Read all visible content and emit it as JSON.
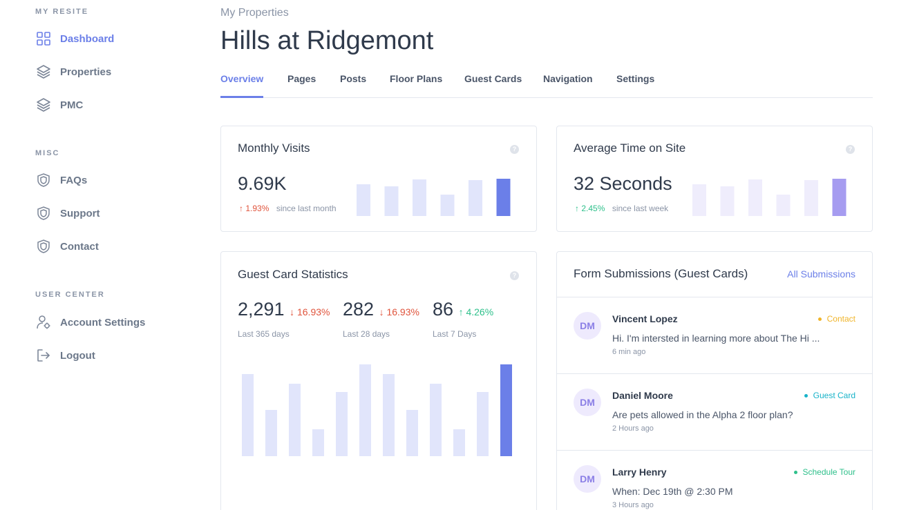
{
  "sidebar": {
    "sections": [
      {
        "title": "MY RESITE",
        "items": [
          {
            "label": "Dashboard",
            "icon": "dashboard-grid-icon",
            "active": true
          },
          {
            "label": "Properties",
            "icon": "layers-icon"
          },
          {
            "label": "PMC",
            "icon": "layers-icon"
          }
        ]
      },
      {
        "title": "MISC",
        "items": [
          {
            "label": "FAQs",
            "icon": "shield-icon"
          },
          {
            "label": "Support",
            "icon": "shield-icon"
          },
          {
            "label": "Contact",
            "icon": "shield-icon"
          }
        ]
      },
      {
        "title": "USER CENTER",
        "items": [
          {
            "label": "Account Settings",
            "icon": "user-gear-icon"
          },
          {
            "label": "Logout",
            "icon": "logout-icon"
          }
        ]
      }
    ]
  },
  "header": {
    "breadcrumb": "My Properties",
    "title": "Hills at Ridgemont"
  },
  "tabs": [
    "Overview",
    "Pages",
    "Posts",
    "Floor Plans",
    "Guest Cards",
    "Navigation",
    "Settings"
  ],
  "active_tab": "Overview",
  "colors": {
    "accent": "#6b7fe8",
    "bar_light": "#e1e5fb",
    "bar_dark": "#6b7fe8",
    "bar_light_purple": "#efedfc",
    "bar_dark_purple": "#a69cf0",
    "down": "#e0533b",
    "up": "#2ec08b"
  },
  "monthly_visits": {
    "title": "Monthly Visits",
    "value": "9.69K",
    "delta": "↑ 1.93%",
    "since": "since last month"
  },
  "avg_time": {
    "title": "Average Time on Site",
    "value": "32 Seconds",
    "delta": "↑ 2.45%",
    "since": "since last week"
  },
  "guest_stats": {
    "title": "Guest Card Statistics",
    "stats": [
      {
        "value": "2,291",
        "delta": "↓ 16.93%",
        "caption": "Last 365 days"
      },
      {
        "value": "282",
        "delta": "↓ 16.93%",
        "caption": "Last 28 days"
      },
      {
        "value": "86",
        "delta": "↑ 4.26%",
        "caption": "Last 7 Days"
      }
    ]
  },
  "submissions": {
    "title": "Form Submissions (Guest Cards)",
    "link": "All Submissions",
    "items": [
      {
        "initials": "DM",
        "name": "Vincent Lopez",
        "tag": "Contact",
        "tag_color": "#f0b429",
        "message": "Hi. I'm intersted in learning more about The Hi ...",
        "time": "6 min ago"
      },
      {
        "initials": "DM",
        "name": "Daniel Moore",
        "tag": "Guest Card",
        "tag_color": "#17b3c9",
        "message": "Are pets allowed in the Alpha 2 floor plan?",
        "time": "2 Hours ago"
      },
      {
        "initials": "DM",
        "name": "Larry Henry",
        "tag": "Schedule Tour",
        "tag_color": "#2ec08b",
        "message": "When: Dec 19th @ 2:30 PM",
        "time": "3 Hours ago"
      }
    ]
  },
  "chart_data": [
    {
      "type": "bar",
      "values": [
        46,
        43,
        53,
        31,
        52,
        54
      ],
      "highlight_index": 5
    },
    {
      "type": "bar",
      "values": [
        46,
        43,
        53,
        31,
        52,
        54
      ],
      "highlight_index": 5
    },
    {
      "type": "bar",
      "values": [
        100,
        56,
        88,
        33,
        78,
        112,
        100,
        56,
        88,
        33,
        78,
        112
      ],
      "highlight_index": 11
    }
  ]
}
